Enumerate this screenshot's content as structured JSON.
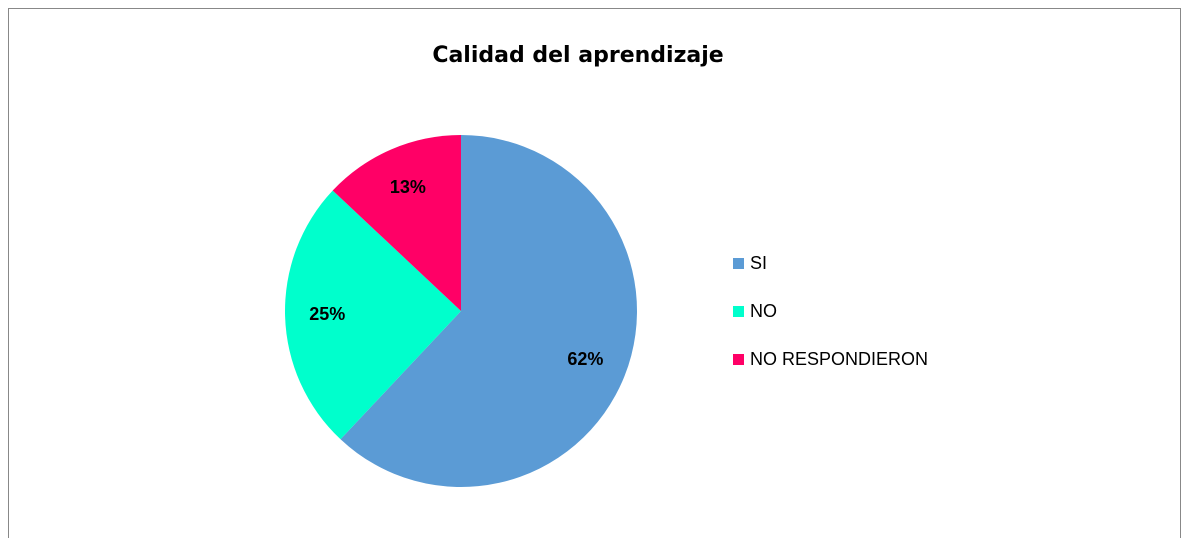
{
  "chart_data": {
    "type": "pie",
    "title": "Calidad del aprendizaje",
    "categories": [
      "SI",
      "NO",
      "NO RESPONDIERON"
    ],
    "values": [
      62,
      25,
      13
    ],
    "value_labels": [
      "62%",
      "25%",
      "13%"
    ],
    "colors": [
      "#5b9bd5",
      "#00ffcc",
      "#ff0066"
    ],
    "legend": "right"
  }
}
